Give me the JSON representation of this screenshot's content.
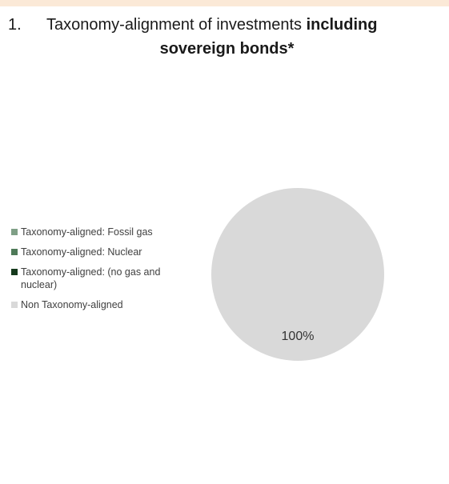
{
  "header": {
    "number": "1.",
    "title_regular": "Taxonomy-alignment of investments ",
    "title_bold_1": "including",
    "title_bold_2": "sovereign bonds*"
  },
  "chart_data": {
    "type": "pie",
    "legend_placement": "left",
    "series": [
      {
        "name": "Taxonomy-aligned: Fossil gas",
        "value": 0,
        "color": "#7f9f86"
      },
      {
        "name": "Taxonomy-aligned: Nuclear",
        "value": 0,
        "color": "#4e7a58"
      },
      {
        "name": "Taxonomy-aligned: (no gas and nuclear)",
        "value": 0,
        "color": "#14391c"
      },
      {
        "name": "Non Taxonomy-aligned",
        "value": 100,
        "color": "#d9d9d9"
      }
    ],
    "data_labels": [
      {
        "series": "Non Taxonomy-aligned",
        "text": "100%"
      }
    ]
  }
}
